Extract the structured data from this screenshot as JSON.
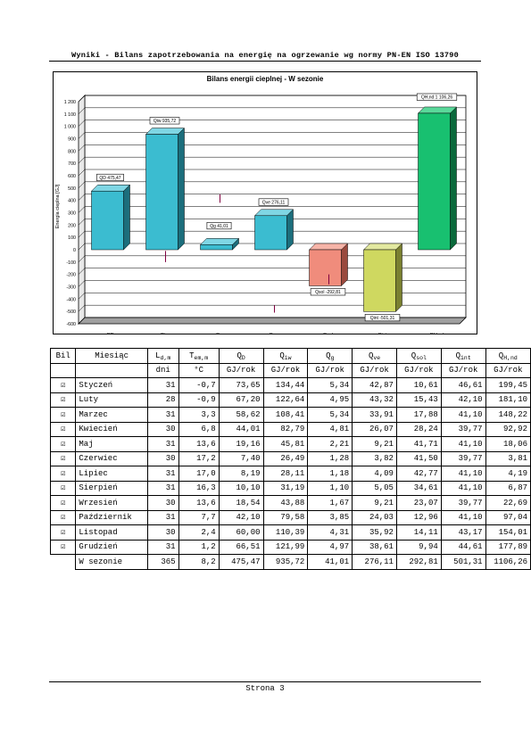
{
  "header": {
    "title": "Wyniki - Bilans zapotrzebowania na energię na ogrzewanie wg normy PN-EN ISO 13790"
  },
  "chart_data": {
    "type": "bar",
    "title": "Bilans energii cieplnej - W sezonie",
    "ylabel": "Energia cieplna [GJ]",
    "xlabel": "",
    "ylim": [
      -600,
      1200
    ],
    "yticks": [
      1200,
      1100,
      1000,
      900,
      800,
      700,
      600,
      500,
      400,
      300,
      200,
      100,
      0,
      -100,
      -200,
      -300,
      -400,
      -500,
      -600
    ],
    "grid": true,
    "categories": [
      "QD",
      "Qiw",
      "Qg",
      "Qve",
      "Qsol",
      "Qint",
      "QH,nd"
    ],
    "values": [
      475.47,
      935.72,
      41.01,
      276.11,
      -292.81,
      -501.31,
      1106.26
    ],
    "data_labels": [
      "QD 475,47",
      "Qiw 935,72",
      "Qg 41,01",
      "Qve 276,11",
      "Qsol -292,81",
      "Qint -501,31",
      "QH,nd 1 106,26"
    ],
    "colors": [
      {
        "front": "#3bbcd0",
        "top": "#7fd6e4",
        "side": "#1c6e7c"
      },
      {
        "front": "#3bbcd0",
        "top": "#7fd6e4",
        "side": "#1c6e7c"
      },
      {
        "front": "#3bbcd0",
        "top": "#7fd6e4",
        "side": "#1c6e7c"
      },
      {
        "front": "#3bbcd0",
        "top": "#7fd6e4",
        "side": "#1c6e7c"
      },
      {
        "front": "#f08c7c",
        "top": "#f6b4a8",
        "side": "#9a4a3e"
      },
      {
        "front": "#cfd860",
        "top": "#e2e8a0",
        "side": "#7a8030"
      },
      {
        "front": "#18c070",
        "top": "#5ad89a",
        "side": "#0b6a3c"
      }
    ],
    "markers": [
      {
        "category": "Qiw",
        "from": -100,
        "to": -10,
        "color": "#800040"
      },
      {
        "category": "Qg",
        "from": 380,
        "to": 450,
        "color": "#800040"
      },
      {
        "category": "Qve",
        "from": -510,
        "to": -450,
        "color": "#800040"
      },
      {
        "category": "Qsol",
        "from": -280,
        "to": -200,
        "color": "#800040"
      }
    ]
  },
  "table": {
    "head1": [
      "Bil",
      "Miesiąc",
      "Ld,m",
      "Tem,m",
      "QD",
      "Qiw",
      "Qg",
      "Qve",
      "Qsol",
      "Qint",
      "QH,nd"
    ],
    "head1_parts": [
      [
        "Bil",
        ""
      ],
      [
        "Miesiąc",
        ""
      ],
      [
        "L",
        "d,m"
      ],
      [
        "T",
        "em,m"
      ],
      [
        "Q",
        "D"
      ],
      [
        "Q",
        "iw"
      ],
      [
        "Q",
        "g"
      ],
      [
        "Q",
        "ve"
      ],
      [
        "Q",
        "sol"
      ],
      [
        "Q",
        "int"
      ],
      [
        "Q",
        "H,nd"
      ]
    ],
    "head2": [
      "",
      "",
      "dni",
      "°C",
      "GJ/rok",
      "GJ/rok",
      "GJ/rok",
      "GJ/rok",
      "GJ/rok",
      "GJ/rok",
      "GJ/rok"
    ],
    "check_glyph": "☑",
    "rows": [
      [
        "Styczeń",
        "31",
        "-0,7",
        "73,65",
        "134,44",
        "5,34",
        "42,87",
        "10,61",
        "46,61",
        "199,45"
      ],
      [
        "Luty",
        "28",
        "-0,9",
        "67,20",
        "122,64",
        "4,95",
        "43,32",
        "15,43",
        "42,10",
        "181,10"
      ],
      [
        "Marzec",
        "31",
        "3,3",
        "58,62",
        "108,41",
        "5,34",
        "33,91",
        "17,88",
        "41,10",
        "148,22"
      ],
      [
        "Kwiecień",
        "30",
        "6,8",
        "44,01",
        "82,79",
        "4,81",
        "26,07",
        "28,24",
        "39,77",
        "92,92"
      ],
      [
        "Maj",
        "31",
        "13,6",
        "19,16",
        "45,81",
        "2,21",
        "9,21",
        "41,71",
        "41,10",
        "18,06"
      ],
      [
        "Czerwiec",
        "30",
        "17,2",
        "7,40",
        "26,49",
        "1,28",
        "3,82",
        "41,50",
        "39,77",
        "3,81"
      ],
      [
        "Lipiec",
        "31",
        "17,0",
        "8,19",
        "28,11",
        "1,18",
        "4,09",
        "42,77",
        "41,10",
        "4,19"
      ],
      [
        "Sierpień",
        "31",
        "16,3",
        "10,10",
        "31,19",
        "1,10",
        "5,05",
        "34,61",
        "41,10",
        "6,87"
      ],
      [
        "Wrzesień",
        "30",
        "13,6",
        "18,54",
        "43,88",
        "1,67",
        "9,21",
        "23,07",
        "39,77",
        "22,69"
      ],
      [
        "Październik",
        "31",
        "7,7",
        "42,10",
        "79,58",
        "3,85",
        "24,03",
        "12,96",
        "41,10",
        "97,04"
      ],
      [
        "Listopad",
        "30",
        "2,4",
        "60,00",
        "110,39",
        "4,31",
        "35,92",
        "14,11",
        "43,17",
        "154,01"
      ],
      [
        "Grudzień",
        "31",
        "1,2",
        "66,51",
        "121,99",
        "4,97",
        "38,61",
        "9,94",
        "44,61",
        "177,89"
      ]
    ],
    "total": [
      "W sezonie",
      "365",
      "8,2",
      "475,47",
      "935,72",
      "41,01",
      "276,11",
      "292,81",
      "501,31",
      "1106,26"
    ]
  },
  "footer": {
    "page": "Strona 3"
  }
}
